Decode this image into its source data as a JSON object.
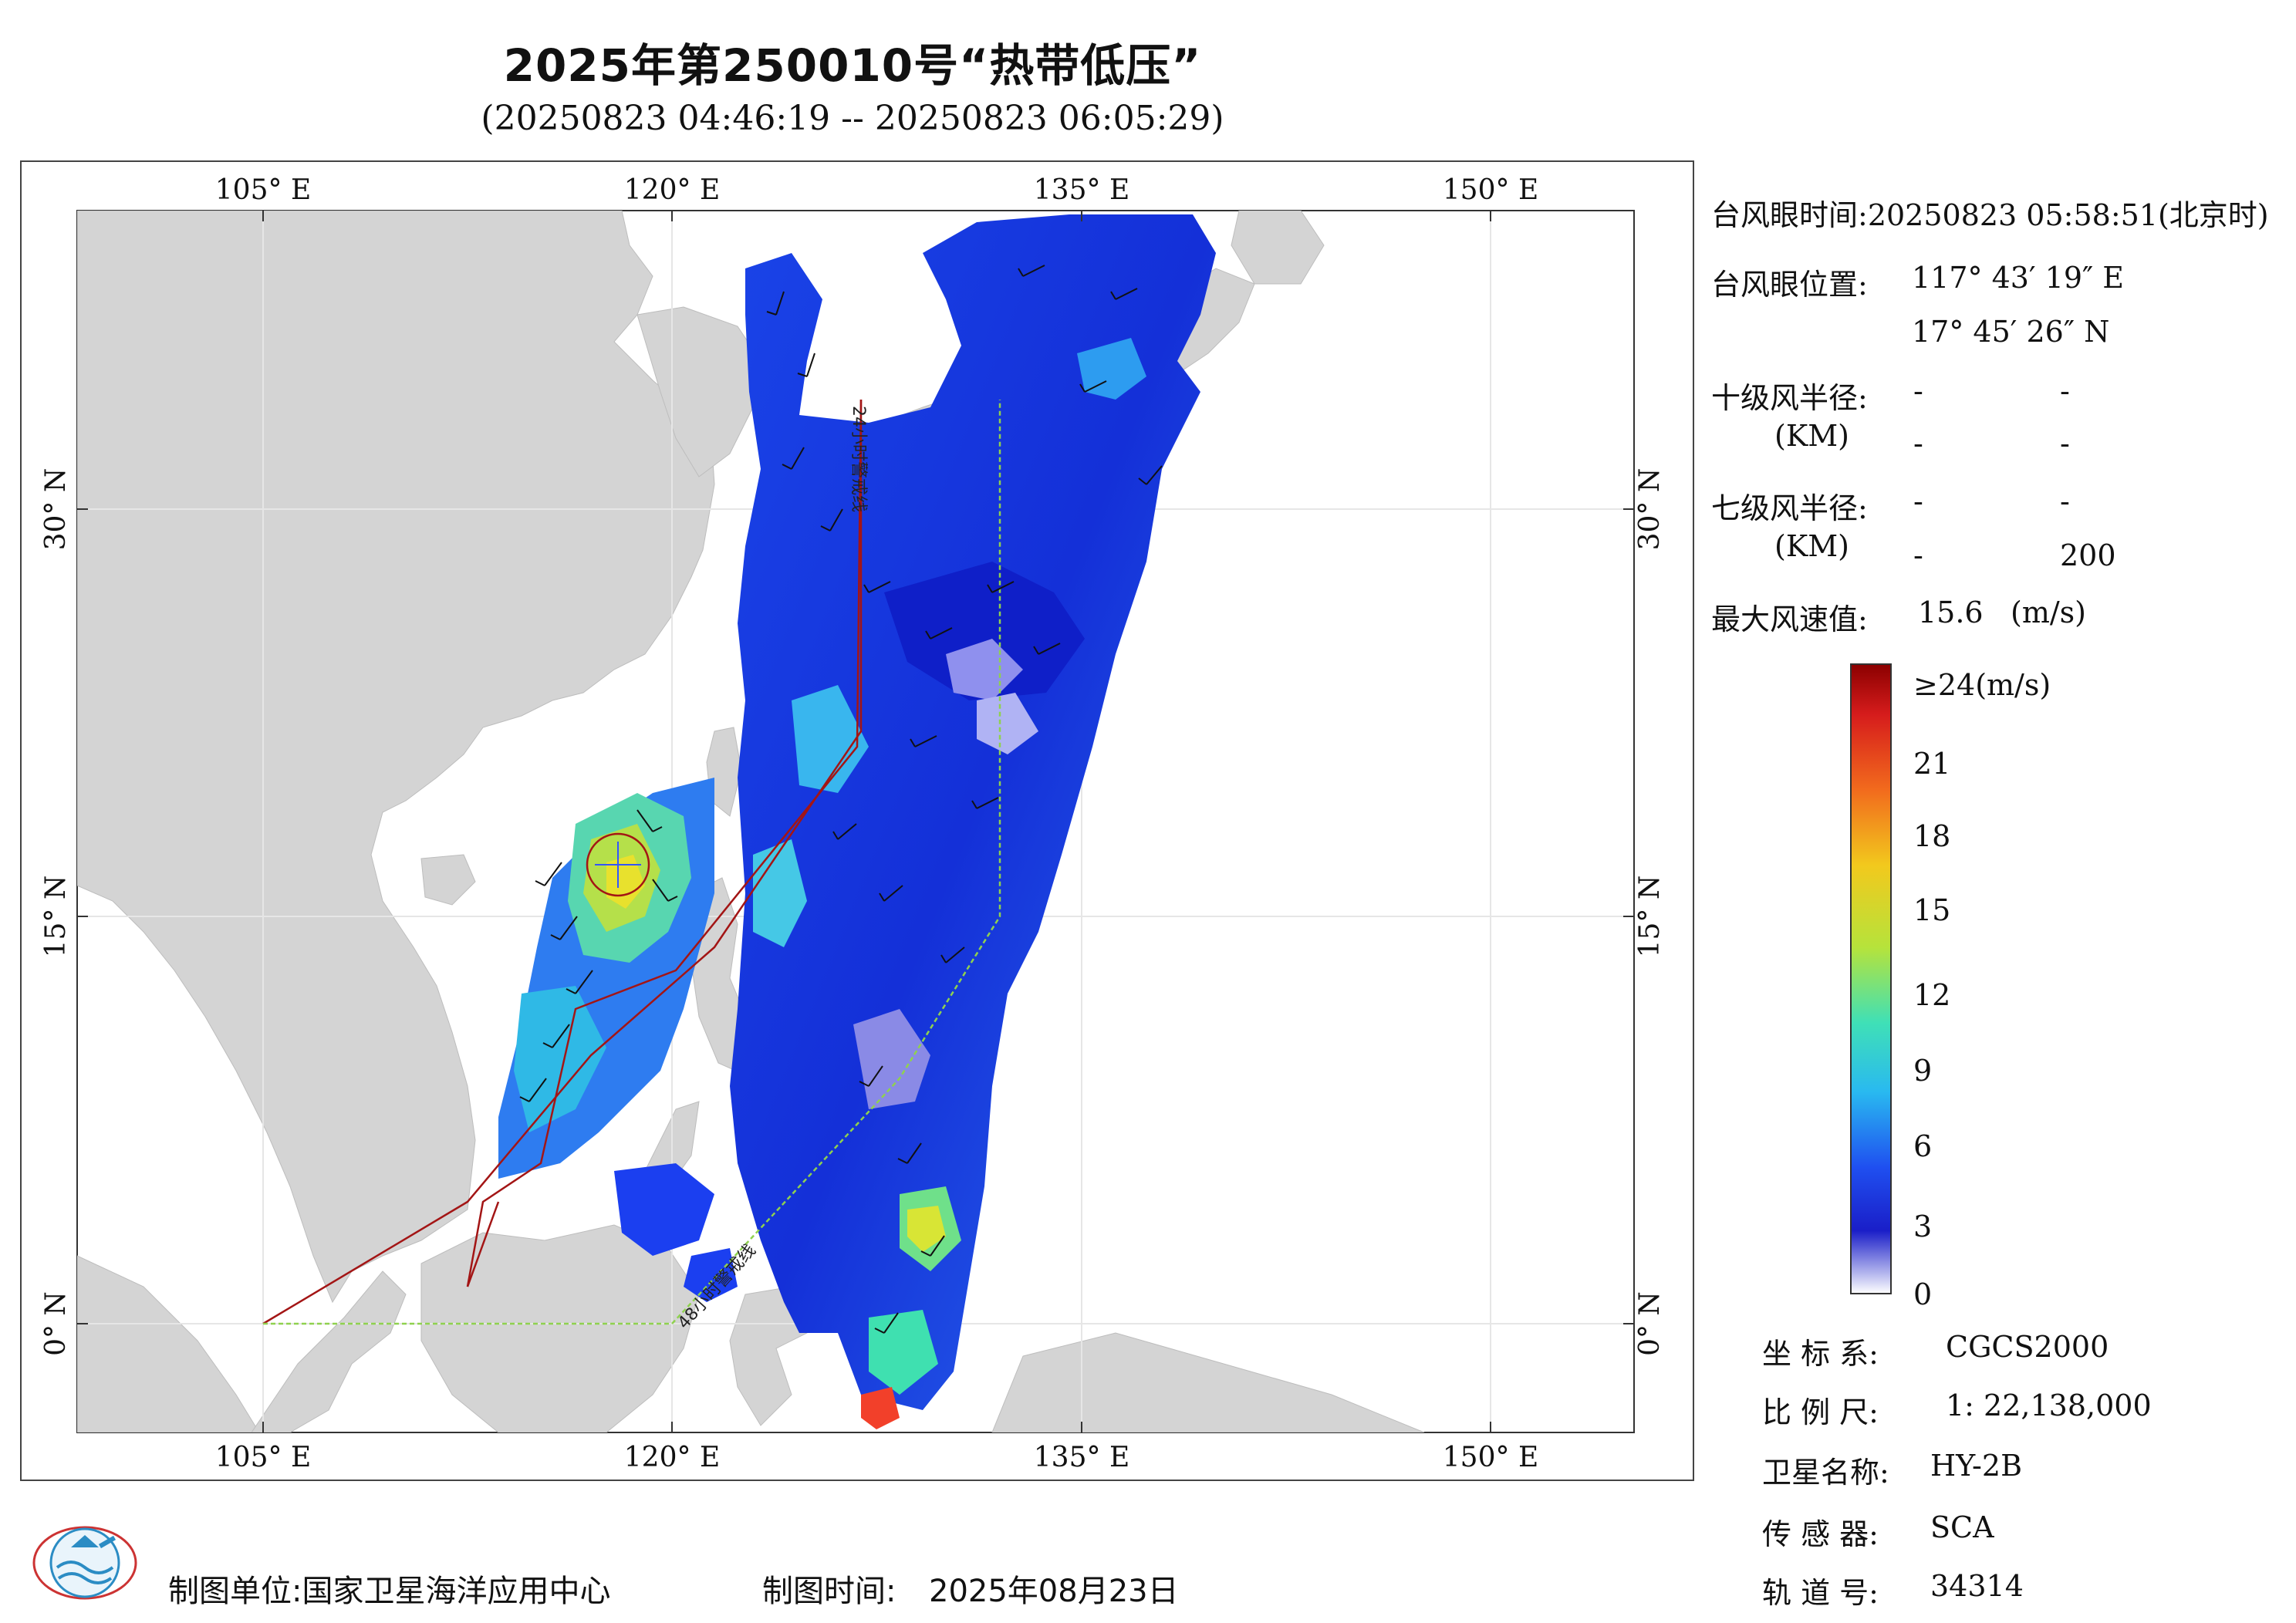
{
  "header": {
    "title": "2025年第250010号“热带低压”",
    "subtitle": "(20250823 04:46:19 -- 20250823 06:05:29)"
  },
  "map": {
    "lon_labels": [
      "105° E",
      "120° E",
      "135° E",
      "150° E"
    ],
    "lat_labels": [
      "30° N",
      "15° N",
      "0° N"
    ],
    "warning_line_24h": "24小时警戒线",
    "warning_line_48h": "48小时警戒线",
    "colors": {
      "land": "#d4d4d4",
      "sea": "#ffffff",
      "warning_24h": "#a31515",
      "warning_48h": "#8fd14f",
      "grid": "#e8e8e8"
    }
  },
  "info": {
    "eye_time_label": "台风眼时间:",
    "eye_time_value": "20250823 05:58:51(北京时)",
    "eye_pos_label": "台风眼位置:",
    "eye_lon": "117° 43′ 19″ E",
    "eye_lat": "17° 45′ 26″ N",
    "r10_label": "十级风半径:",
    "r10_unit": "(KM)",
    "r10_values": [
      "-",
      "-",
      "-",
      "-"
    ],
    "r7_label": "七级风半径:",
    "r7_unit": "(KM)",
    "r7_values": [
      "-",
      "-",
      "-",
      "200"
    ],
    "max_wind_label": "最大风速值:",
    "max_wind_value": "15.6",
    "max_wind_unit": "(m/s)"
  },
  "legend": {
    "top_label": "≥24(m/s)",
    "ticks": [
      "21",
      "18",
      "15",
      "12",
      "9",
      "6",
      "3",
      "0"
    ]
  },
  "meta": {
    "crs_label": "坐 标 系:",
    "crs_value": "CGCS2000",
    "scale_label": "比 例 尺:",
    "scale_value": "1: 22,138,000",
    "satellite_label": "卫星名称:",
    "satellite_value": "HY-2B",
    "sensor_label": "传 感 器:",
    "sensor_value": "SCA",
    "orbit_label": "轨 道 号:",
    "orbit_value": "34314"
  },
  "footer": {
    "producer_label": "制图单位:",
    "producer_value": "国家卫星海洋应用中心",
    "date_label": "制图时间:",
    "date_value": "2025年08月23日"
  }
}
